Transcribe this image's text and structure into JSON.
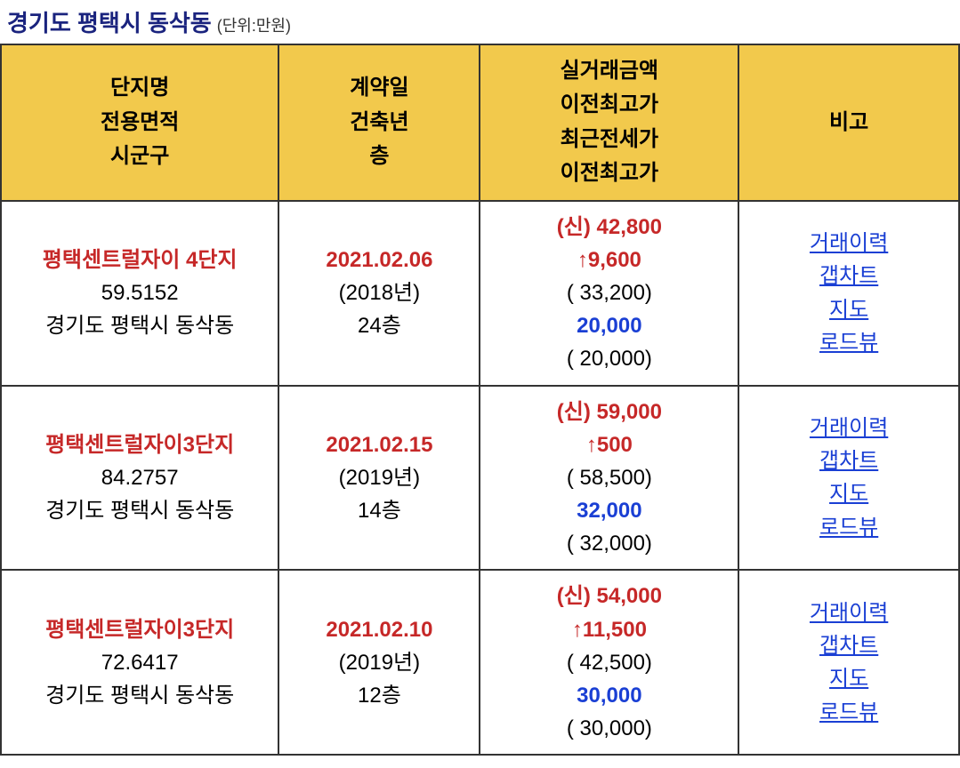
{
  "header": {
    "title": "경기도 평택시 동삭동",
    "unit": "(단위:만원)"
  },
  "columns": {
    "complex": "단지명\n전용면적\n시군구",
    "contract": "계약일\n건축년\n층",
    "price": "실거래금액\n이전최고가\n최근전세가\n이전최고가",
    "remark": "비고"
  },
  "rows": [
    {
      "complex_name": "평택센트럴자이 4단지",
      "area": "59.5152",
      "region": "경기도 평택시 동삭동",
      "contract_date": "2021.02.06",
      "build_year": "(2018년)",
      "floor": "24층",
      "price_new": "(신) 42,800",
      "price_up": "↑9,600",
      "price_prev": "( 33,200)",
      "price_jeonse": "20,000",
      "price_jeonse_prev": "( 20,000)",
      "links": [
        "거래이력",
        "갭차트",
        "지도",
        "로드뷰"
      ]
    },
    {
      "complex_name": "평택센트럴자이3단지",
      "area": "84.2757",
      "region": "경기도 평택시 동삭동",
      "contract_date": "2021.02.15",
      "build_year": "(2019년)",
      "floor": "14층",
      "price_new": "(신) 59,000",
      "price_up": "↑500",
      "price_prev": "( 58,500)",
      "price_jeonse": "32,000",
      "price_jeonse_prev": "( 32,000)",
      "links": [
        "거래이력",
        "갭차트",
        "지도",
        "로드뷰"
      ]
    },
    {
      "complex_name": "평택센트럴자이3단지",
      "area": "72.6417",
      "region": "경기도 평택시 동삭동",
      "contract_date": "2021.02.10",
      "build_year": "(2019년)",
      "floor": "12층",
      "price_new": "(신) 54,000",
      "price_up": "↑11,500",
      "price_prev": "( 42,500)",
      "price_jeonse": "30,000",
      "price_jeonse_prev": "( 30,000)",
      "links": [
        "거래이력",
        "갭차트",
        "지도",
        "로드뷰"
      ]
    }
  ],
  "styling": {
    "header_bg": "#f2c94c",
    "border_color": "#333333",
    "title_color": "#1a237e",
    "red_text": "#c62828",
    "blue_text": "#1a3fd4",
    "link_color": "#1a3fd4",
    "font_size_title": 26,
    "font_size_cell": 24
  }
}
